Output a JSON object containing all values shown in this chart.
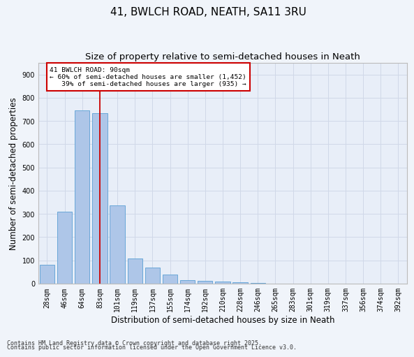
{
  "title_line1": "41, BWLCH ROAD, NEATH, SA11 3RU",
  "title_line2": "Size of property relative to semi-detached houses in Neath",
  "xlabel": "Distribution of semi-detached houses by size in Neath",
  "ylabel": "Number of semi-detached properties",
  "categories": [
    "28sqm",
    "46sqm",
    "64sqm",
    "83sqm",
    "101sqm",
    "119sqm",
    "137sqm",
    "155sqm",
    "174sqm",
    "192sqm",
    "210sqm",
    "228sqm",
    "246sqm",
    "265sqm",
    "283sqm",
    "301sqm",
    "319sqm",
    "337sqm",
    "356sqm",
    "374sqm",
    "392sqm"
  ],
  "values": [
    80,
    308,
    745,
    735,
    335,
    107,
    68,
    40,
    14,
    12,
    10,
    6,
    4,
    0,
    0,
    0,
    0,
    0,
    0,
    0,
    0
  ],
  "bar_color": "#aec6e8",
  "bar_edge_color": "#5a9fd4",
  "highlight_index": 3,
  "highlight_line_color": "#cc0000",
  "annotation_text": "41 BWLCH ROAD: 90sqm\n← 60% of semi-detached houses are smaller (1,452)\n   39% of semi-detached houses are larger (935) →",
  "annotation_box_color": "#ffffff",
  "annotation_box_edge": "#cc0000",
  "footnote1": "Contains HM Land Registry data © Crown copyright and database right 2025.",
  "footnote2": "Contains public sector information licensed under the Open Government Licence v3.0.",
  "ylim": [
    0,
    950
  ],
  "yticks": [
    0,
    100,
    200,
    300,
    400,
    500,
    600,
    700,
    800,
    900
  ],
  "grid_color": "#d0d8e8",
  "plot_bg": "#e8eef8",
  "fig_bg": "#f0f4fa",
  "title_fontsize": 11,
  "subtitle_fontsize": 9.5,
  "tick_fontsize": 7,
  "label_fontsize": 8.5,
  "footnote_fontsize": 6
}
